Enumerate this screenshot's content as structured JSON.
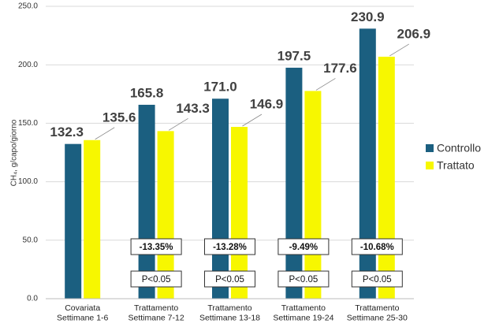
{
  "chart_data": {
    "type": "bar",
    "y_label": "CH₄, g/capo/giorno",
    "categories": [
      "Covariata\nSettimane 1-6",
      "Trattamento\nSettimane 7-12",
      "Trattamento\nSettimane 13-18",
      "Trattamento\nSettimane 19-24",
      "Trattamento\nSettimane 25-30"
    ],
    "series": [
      {
        "name": "Controllo",
        "color": "#1b5f80",
        "values": [
          132.3,
          165.8,
          171.0,
          197.5,
          230.9
        ],
        "value_labels": [
          "132.3",
          "165.8",
          "171.0",
          "197.5",
          "230.9"
        ]
      },
      {
        "name": "Trattato",
        "color": "#f7f700",
        "values": [
          135.6,
          143.3,
          146.9,
          177.6,
          206.9
        ],
        "value_labels": [
          "135.6",
          "143.3",
          "146.9",
          "177.6",
          "206.9"
        ]
      }
    ],
    "change_labels": [
      null,
      "-13.35%",
      "-13.28%",
      "-9.49%",
      "-10.68%"
    ],
    "p_labels": [
      null,
      "P<0.05",
      "P<0.05",
      "P<0.05",
      "P<0.05"
    ],
    "ylim": [
      0,
      250
    ],
    "yticks": [
      {
        "value": 0,
        "label": "0.0"
      },
      {
        "value": 50,
        "label": "50.0"
      },
      {
        "value": 100,
        "label": "100.0"
      },
      {
        "value": 150,
        "label": "150.0"
      },
      {
        "value": 200,
        "label": "200.0"
      },
      {
        "value": 250,
        "label": "250.0"
      }
    ],
    "grid": true,
    "legend": "right"
  }
}
